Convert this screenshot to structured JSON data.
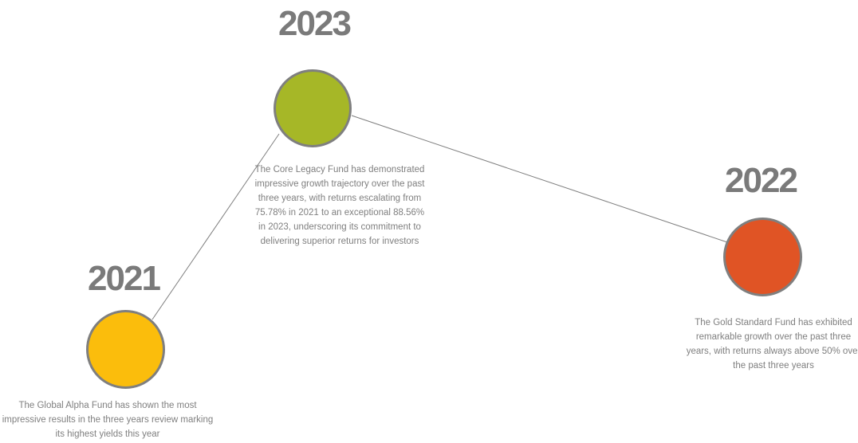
{
  "colors": {
    "node_2021": "#fbbd0c",
    "node_2023": "#a6b727",
    "node_2022": "#e05425",
    "node_border": "#7f7f7f",
    "year_text": "#7a7a7a",
    "desc_text": "#7f7f7f",
    "connector": "#7f7f7f"
  },
  "milestones": {
    "y2021": {
      "year": "2021",
      "description": "The Global Alpha Fund has shown the most impressive results in the three years review marking its highest yields this year"
    },
    "y2023": {
      "year": "2023",
      "description": "The Core Legacy Fund has demonstrated impressive growth trajectory over the past three years, with returns escalating from 75.78% in 2021 to an exceptional 88.56% in 2023, underscoring its commitment to delivering superior returns for investors"
    },
    "y2022": {
      "year": "2022",
      "description": "The Gold Standard Fund has exhibited remarkable growth over the past three years, with returns always above 50%  over the past three years"
    }
  }
}
